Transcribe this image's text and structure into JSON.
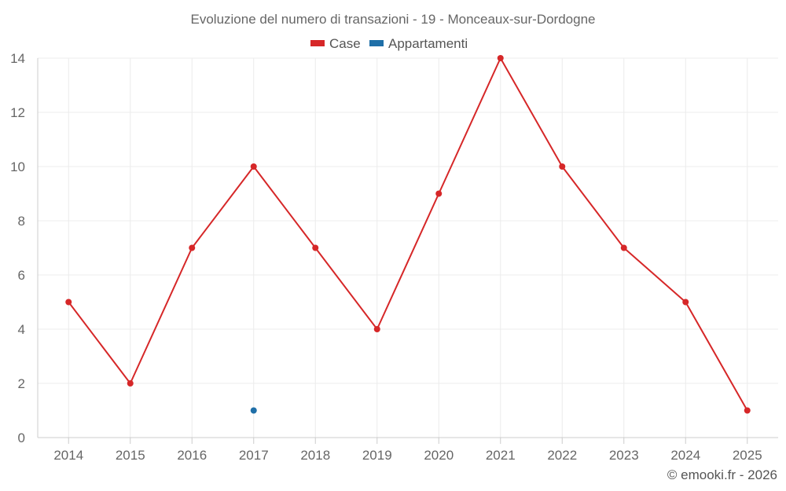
{
  "chart_data": {
    "type": "line",
    "title": "Evoluzione del numero di transazioni - 19 - Monceaux-sur-Dordogne",
    "categories": [
      "2014",
      "2015",
      "2016",
      "2017",
      "2018",
      "2019",
      "2020",
      "2021",
      "2022",
      "2023",
      "2024",
      "2025"
    ],
    "series": [
      {
        "name": "Case",
        "color": "#d62728",
        "values": [
          5,
          2,
          7,
          10,
          7,
          4,
          9,
          14,
          10,
          7,
          5,
          1
        ]
      },
      {
        "name": "Appartamenti",
        "color": "#1f6fa8",
        "values": [
          null,
          null,
          null,
          1,
          null,
          null,
          null,
          null,
          null,
          null,
          null,
          null
        ]
      }
    ],
    "ylim": [
      0,
      14
    ],
    "yticks": [
      "0",
      "2",
      "4",
      "6",
      "8",
      "10",
      "12",
      "14"
    ],
    "grid": true,
    "legend_position": "top-center"
  },
  "credit": "© emooki.fr - 2026"
}
